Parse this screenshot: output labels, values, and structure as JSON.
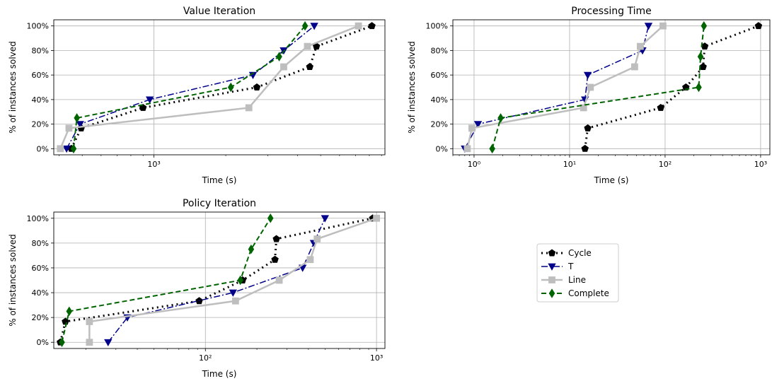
{
  "series_styles": [
    {
      "name": "Cycle",
      "color": "#000000",
      "marker": "pentagon-marker",
      "dash": "2,5",
      "width": 3
    },
    {
      "name": "T",
      "color": "#00008b",
      "marker": "triangle-down-marker",
      "dash": "9,3,2,3",
      "width": 1.5
    },
    {
      "name": "Line",
      "color": "#bebebe",
      "marker": "square-marker",
      "dash": "",
      "width": 2.5
    },
    {
      "name": "Complete",
      "color": "#006400",
      "marker": "diamond-marker",
      "dash": "7,4",
      "width": 2
    }
  ],
  "legend": {
    "entries": [
      "Cycle",
      "T",
      "Line",
      "Complete"
    ]
  },
  "chart_data": [
    {
      "type": "line",
      "title": "Value Iteration",
      "xlabel": "Time (s)",
      "ylabel": "% of instances solved",
      "xscale": "log",
      "xlim": [
        380,
        9300
      ],
      "ylim": [
        -0.05,
        1.05
      ],
      "xticks": [
        1000
      ],
      "xticklabels": [
        "10³"
      ],
      "yticks": [
        0,
        0.2,
        0.4,
        0.6,
        0.8,
        1.0
      ],
      "yticklabels": [
        "0%",
        "20%",
        "40%",
        "60%",
        "80%",
        "100%"
      ],
      "grid": true,
      "series": [
        {
          "name": "Cycle",
          "x": [
            450,
            495,
            900,
            2700,
            4500,
            4800,
            8200
          ],
          "y": [
            0,
            0.1667,
            0.3333,
            0.5,
            0.6667,
            0.8333,
            1.0
          ]
        },
        {
          "name": "T",
          "x": [
            430,
            490,
            960,
            2600,
            3500,
            4700
          ],
          "y": [
            0,
            0.2,
            0.4,
            0.6,
            0.8,
            1.0
          ]
        },
        {
          "name": "Line",
          "x": [
            405,
            440,
            2500,
            3500,
            4400,
            7200
          ],
          "y": [
            0,
            0.1667,
            0.3333,
            0.6667,
            0.8333,
            1.0
          ]
        },
        {
          "name": "Complete",
          "x": [
            460,
            475,
            2100,
            3350,
            4300
          ],
          "y": [
            0,
            0.25,
            0.5,
            0.75,
            1.0
          ]
        }
      ]
    },
    {
      "type": "line",
      "title": "Processing Time",
      "xlabel": "Time (s)",
      "ylabel": "% of instances solved",
      "xscale": "log",
      "xlim": [
        0.6,
        1250
      ],
      "ylim": [
        -0.05,
        1.05
      ],
      "xticks": [
        1,
        10,
        100,
        1000
      ],
      "xticklabels": [
        "10⁰",
        "10¹",
        "10²",
        "10³"
      ],
      "yticks": [
        0,
        0.2,
        0.4,
        0.6,
        0.8,
        1.0
      ],
      "yticklabels": [
        "0%",
        "20%",
        "40%",
        "60%",
        "80%",
        "100%"
      ],
      "grid": true,
      "series": [
        {
          "name": "Cycle",
          "x": [
            14.5,
            15.5,
            90,
            165,
            250,
            260,
            950
          ],
          "y": [
            0,
            0.1667,
            0.3333,
            0.5,
            0.6667,
            0.8333,
            1.0
          ]
        },
        {
          "name": "T",
          "x": [
            0.8,
            1.1,
            14.5,
            15.5,
            58,
            67
          ],
          "y": [
            0,
            0.2,
            0.4,
            0.6,
            0.8,
            1.0
          ]
        },
        {
          "name": "Line",
          "x": [
            0.85,
            0.95,
            14,
            16.5,
            48,
            55,
            95
          ],
          "y": [
            0,
            0.1667,
            0.3333,
            0.5,
            0.6667,
            0.8333,
            1.0
          ]
        },
        {
          "name": "Complete",
          "x": [
            1.55,
            1.9,
            225,
            235,
            255
          ],
          "y": [
            0,
            0.25,
            0.5,
            0.75,
            1.0
          ]
        }
      ]
    },
    {
      "type": "line",
      "title": "Policy Iteration",
      "xlabel": "Time (s)",
      "ylabel": "% of instances solved",
      "xscale": "log",
      "xlim": [
        13,
        1120
      ],
      "ylim": [
        -0.05,
        1.05
      ],
      "xticks": [
        100,
        1000
      ],
      "xticklabels": [
        "10²",
        "10³"
      ],
      "yticks": [
        0,
        0.2,
        0.4,
        0.6,
        0.8,
        1.0
      ],
      "yticklabels": [
        "0%",
        "20%",
        "40%",
        "60%",
        "80%",
        "100%"
      ],
      "grid": true,
      "series": [
        {
          "name": "Cycle",
          "x": [
            14.2,
            15.2,
            92,
            165,
            255,
            260,
            950
          ],
          "y": [
            0,
            0.1667,
            0.3333,
            0.5,
            0.6667,
            0.8333,
            1.0
          ]
        },
        {
          "name": "T",
          "x": [
            27,
            35,
            145,
            370,
            430,
            500
          ],
          "y": [
            0,
            0.2,
            0.4,
            0.6,
            0.8,
            1.0
          ]
        },
        {
          "name": "Line",
          "x": [
            21,
            21,
            150,
            270,
            410,
            450,
            1000
          ],
          "y": [
            0,
            0.1667,
            0.3333,
            0.5,
            0.6667,
            0.8333,
            1.0
          ]
        },
        {
          "name": "Complete",
          "x": [
            14.5,
            16,
            160,
            185,
            240
          ],
          "y": [
            0,
            0.25,
            0.5,
            0.75,
            1.0
          ]
        }
      ]
    }
  ]
}
